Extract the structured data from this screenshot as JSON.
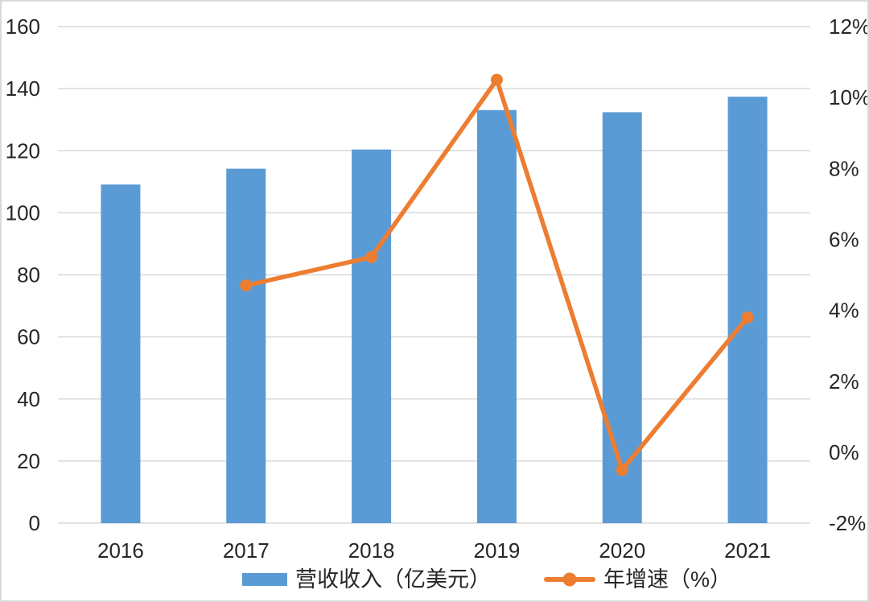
{
  "chart_data": {
    "type": "combo bar+line",
    "title": "",
    "categories": [
      "2016",
      "2017",
      "2018",
      "2019",
      "2020",
      "2021"
    ],
    "series": [
      {
        "name": "营收收入（亿美元）",
        "type": "bar",
        "axis": "left",
        "color": "#5B9BD5",
        "values": [
          109.1,
          114.2,
          120.4,
          133.1,
          132.4,
          137.4
        ]
      },
      {
        "name": "年增速（%）",
        "type": "line",
        "axis": "right",
        "color": "#ED7D31",
        "values": [
          null,
          4.7,
          5.5,
          10.5,
          -0.5,
          3.8
        ]
      }
    ],
    "axes": {
      "left": {
        "min": 0,
        "max": 160,
        "step": 20,
        "tick_labels": [
          "0",
          "20",
          "40",
          "60",
          "80",
          "100",
          "120",
          "140",
          "160"
        ]
      },
      "right": {
        "min": -2,
        "max": 12,
        "step": 2,
        "tick_labels": [
          "-2%",
          "0%",
          "2%",
          "4%",
          "6%",
          "8%",
          "10%",
          "12%"
        ]
      }
    },
    "grid": true,
    "gridline_color": "#D9D9D9",
    "text_color": "#262626",
    "background_color": "#FFFFFF",
    "border_color": "#D9D9D9",
    "legend_position": "bottom",
    "line_has_markers": true
  }
}
